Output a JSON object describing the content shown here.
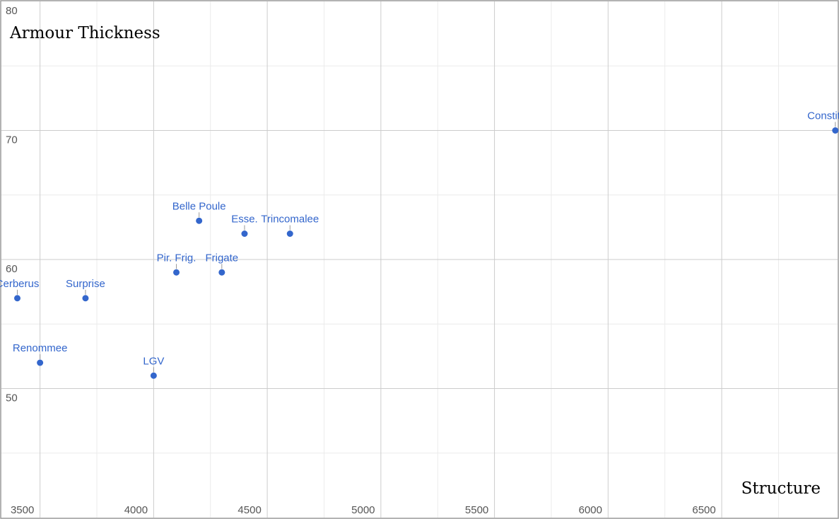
{
  "chart_data": {
    "type": "scatter",
    "title": "",
    "xlabel": "Structure",
    "ylabel": "Armour Thickness",
    "xlim": [
      3330,
      7010
    ],
    "ylim": [
      40,
      80
    ],
    "x_ticks": [
      3500,
      4000,
      4500,
      5000,
      5500,
      6000,
      6500
    ],
    "y_ticks": [
      50,
      60,
      70,
      80
    ],
    "grid": true,
    "point_color": "#3366cc",
    "points": [
      {
        "label": "Cerberus",
        "x": 3400,
        "y": 57
      },
      {
        "label": "Surprise",
        "x": 3700,
        "y": 57
      },
      {
        "label": "Renommee",
        "x": 3500,
        "y": 52
      },
      {
        "label": "LGV",
        "x": 4000,
        "y": 51
      },
      {
        "label": "Pir. Frig.",
        "x": 4100,
        "y": 59
      },
      {
        "label": "Frigate",
        "x": 4300,
        "y": 59
      },
      {
        "label": "Belle Poule",
        "x": 4200,
        "y": 63
      },
      {
        "label": "Esse.",
        "x": 4400,
        "y": 62
      },
      {
        "label": "Trincomalee",
        "x": 4600,
        "y": 62
      },
      {
        "label": "Constitution",
        "x": 7000,
        "y": 70
      }
    ]
  }
}
